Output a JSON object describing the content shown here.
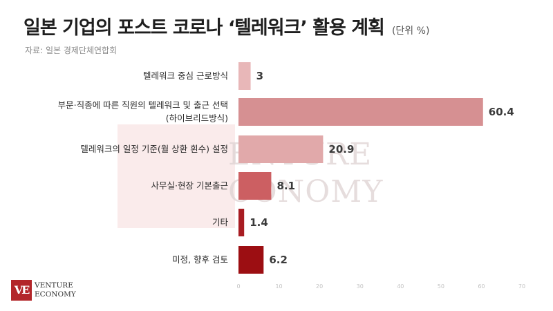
{
  "header": {
    "title": "일본 기업의 포스트 코로나 ‘텔레워크’ 활용 계획",
    "unit": "(단위 %)",
    "source": "자료: 일본 경제단체연합회"
  },
  "watermark": {
    "line1": "ENTURE",
    "line2": "CONOMY"
  },
  "logo": {
    "mark": "VE",
    "line1": "VENTURE",
    "line2": "ECONOMY"
  },
  "chart_data": {
    "type": "bar",
    "orientation": "horizontal",
    "title": "일본 기업의 포스트 코로나 ‘텔레워크’ 활용 계획",
    "unit": "(단위 %)",
    "categories": [
      [
        "텔레워크 중심 근로방식"
      ],
      [
        "부문·직종에 따른 직원의 텔레워크 및 출근 선택",
        "(하이브리드방식)"
      ],
      [
        "텔레워크의 일정 기준(월 상환 횐수) 설정"
      ],
      [
        "사무실·현장 기본출근"
      ],
      [
        "기타"
      ],
      [
        "미정, 향후 검토"
      ]
    ],
    "values": [
      3,
      60.4,
      20.9,
      8.1,
      1.4,
      6.2
    ],
    "value_labels": [
      "3",
      "60.4",
      "20.9",
      "8.1",
      "1.4",
      "6.2"
    ],
    "bar_colors": [
      "#e8b7b8",
      "#d69092",
      "#e1a9aa",
      "#cc5f62",
      "#a81c22",
      "#9c0e12"
    ],
    "xlim": [
      0,
      70
    ],
    "xticks": [
      0,
      10,
      20,
      30,
      40,
      50,
      60,
      70
    ],
    "grid": false,
    "legend": "none"
  }
}
